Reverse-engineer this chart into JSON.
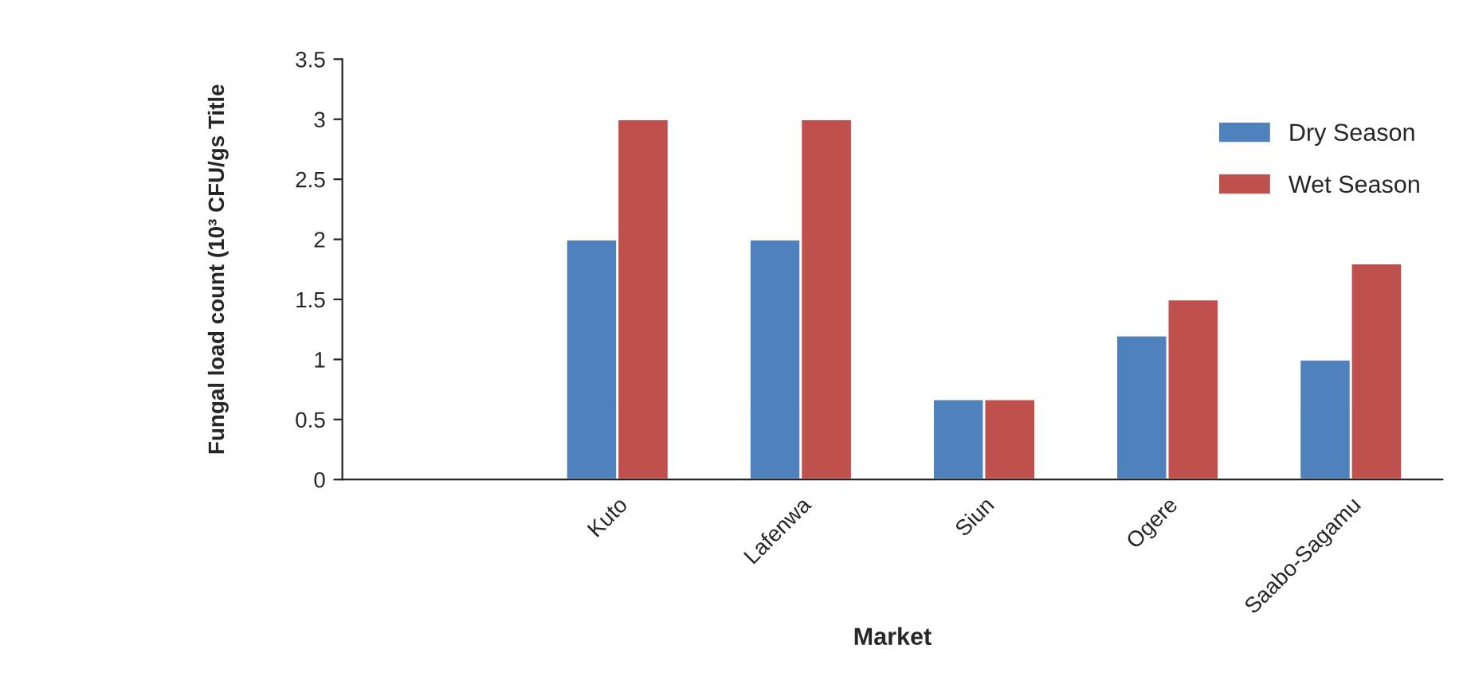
{
  "chart_data": {
    "type": "bar",
    "xlabel": "Market",
    "ylabel": "Fungal load count (10³ CFU/gs Title",
    "categories": [
      null,
      "Kuto",
      "Lafenwa",
      "Siun",
      "Ogere",
      "Saabo-Sagamu"
    ],
    "series": [
      {
        "name": "Dry Season",
        "color": "#4f81bd",
        "values": [
          null,
          2,
          2,
          0.67,
          1.2,
          1.0
        ]
      },
      {
        "name": "Wet Season",
        "color": "#c0504d",
        "values": [
          null,
          3,
          3,
          0.67,
          1.5,
          1.8
        ]
      }
    ],
    "ylim": [
      0,
      3.5
    ],
    "yticks": [
      0,
      0.5,
      1,
      1.5,
      2,
      2.5,
      3,
      3.5
    ],
    "grid": false,
    "legend": "top right"
  }
}
